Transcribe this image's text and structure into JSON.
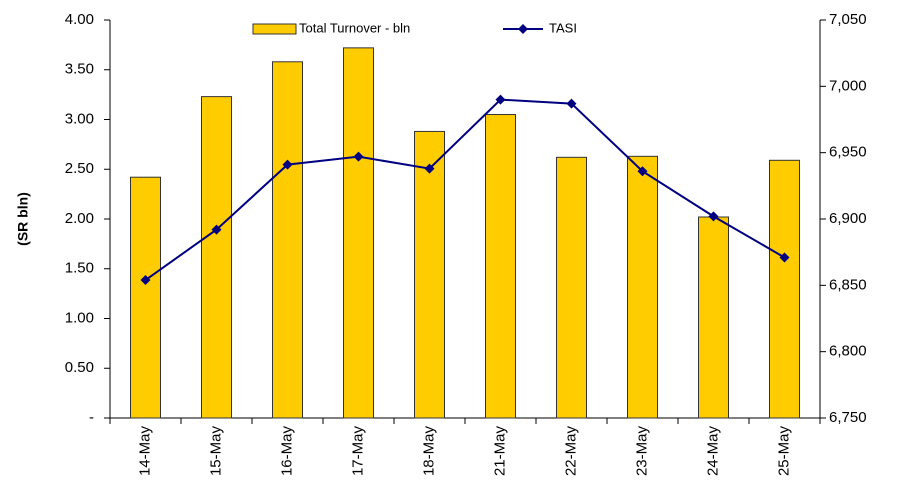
{
  "chart_data": {
    "type": "bar_line",
    "y_label": "(SR bln)",
    "categories": [
      "14-May",
      "15-May",
      "16-May",
      "17-May",
      "18-May",
      "21-May",
      "22-May",
      "23-May",
      "24-May",
      "25-May"
    ],
    "series": [
      {
        "name": "Total Turnover - bln",
        "type": "bar",
        "color": "#FFCC00",
        "values": [
          2.42,
          3.23,
          3.58,
          3.72,
          2.88,
          3.05,
          2.62,
          2.63,
          2.02,
          2.59
        ]
      },
      {
        "name": "TASI",
        "type": "line",
        "axis": "y2",
        "color": "#000080",
        "values": [
          6854,
          6892,
          6941,
          6947,
          6938,
          6990,
          6987,
          6936,
          6902,
          6871
        ]
      }
    ],
    "ylim": [
      0,
      4
    ],
    "yticks": [
      {
        "value": 0,
        "label": "-"
      },
      {
        "value": 0.5,
        "label": "0.50"
      },
      {
        "value": 1,
        "label": "1.00"
      },
      {
        "value": 1.5,
        "label": "1.50"
      },
      {
        "value": 2,
        "label": "2.00"
      },
      {
        "value": 2.5,
        "label": "2.50"
      },
      {
        "value": 3,
        "label": "3.00"
      },
      {
        "value": 3.5,
        "label": "3.50"
      },
      {
        "value": 4,
        "label": "4.00"
      }
    ],
    "y2lim": [
      6750,
      7050
    ],
    "y2ticks": [
      {
        "value": 6750,
        "label": "6,750"
      },
      {
        "value": 6800,
        "label": "6,800"
      },
      {
        "value": 6850,
        "label": "6,850"
      },
      {
        "value": 6900,
        "label": "6,900"
      },
      {
        "value": 6950,
        "label": "6,950"
      },
      {
        "value": 7000,
        "label": "7,000"
      },
      {
        "value": 7050,
        "label": "7,050"
      }
    ],
    "grid": false,
    "legend": "top"
  }
}
